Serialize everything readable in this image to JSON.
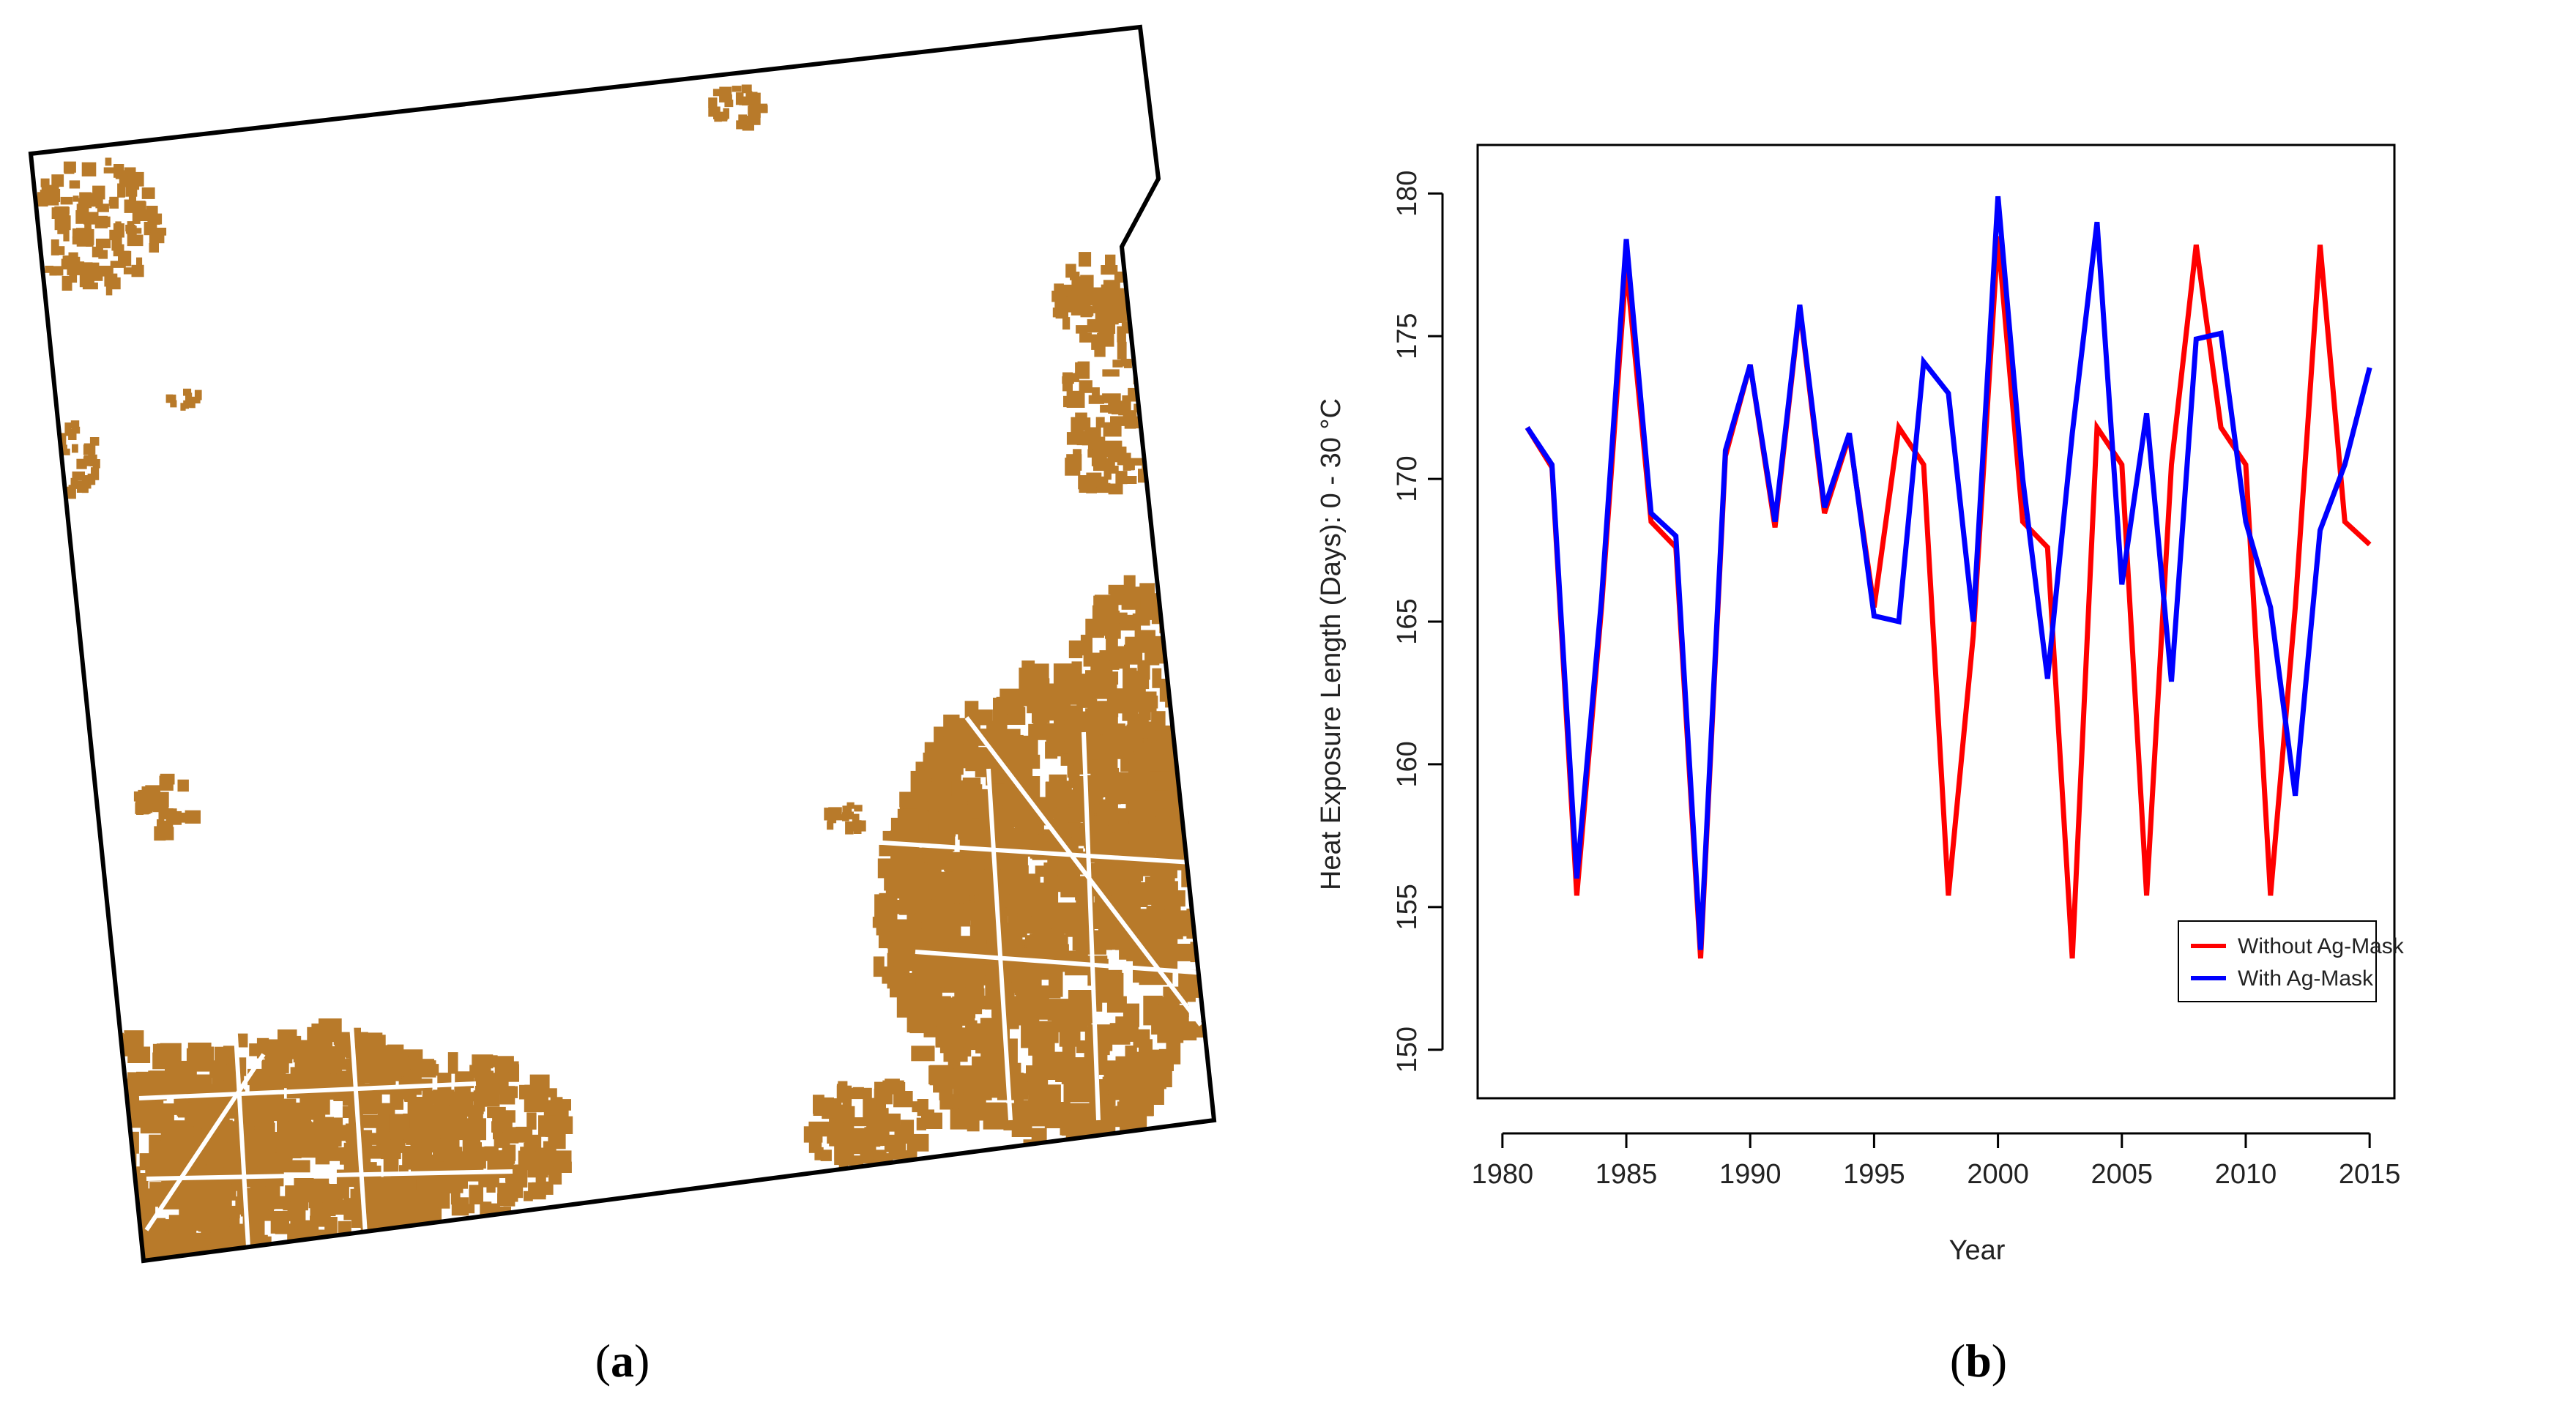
{
  "panel_a": {
    "caption_letter": "a",
    "fill_color": "#b87a2a",
    "outline_color": "#000000"
  },
  "panel_b": {
    "caption_letter": "b"
  },
  "chart_data": {
    "type": "line",
    "title": "",
    "xlabel": "Year",
    "ylabel": "Heat Exposure Length (Days): 0 - 30 °C",
    "xlim": [
      1980,
      2015
    ],
    "ylim": [
      150,
      180
    ],
    "x_ticks": [
      1980,
      1985,
      1990,
      1995,
      2000,
      2005,
      2010,
      2015
    ],
    "y_ticks": [
      150,
      155,
      160,
      165,
      170,
      175,
      180
    ],
    "x": [
      1981,
      1982,
      1983,
      1984,
      1985,
      1986,
      1987,
      1988,
      1989,
      1990,
      1991,
      1992,
      1993,
      1994,
      1995,
      1996,
      1997,
      1998,
      1999,
      2000,
      2001,
      2002,
      2003,
      2004,
      2005,
      2006,
      2007,
      2008,
      2009,
      2010,
      2011,
      2012,
      2013,
      2014,
      2015
    ],
    "series": [
      {
        "name": "Without Ag-Mask",
        "color": "#ff0000",
        "values": [
          171.8,
          170.4,
          155.4,
          165.5,
          177.5,
          168.5,
          167.6,
          153.2,
          170.8,
          174.0,
          168.3,
          176.0,
          168.8,
          171.5,
          165.5,
          171.8,
          170.5,
          155.4,
          164.5,
          178.5,
          168.5,
          167.6,
          153.2,
          171.8,
          170.5,
          155.4,
          170.5,
          178.2,
          171.8,
          170.5,
          155.4,
          165.5,
          178.2,
          168.5,
          167.7
        ]
      },
      {
        "name": "With Ag-Mask",
        "color": "#0000ff",
        "values": [
          171.8,
          170.5,
          156.0,
          165.8,
          178.4,
          168.8,
          168.0,
          153.5,
          171.0,
          174.0,
          168.5,
          176.1,
          169.0,
          171.6,
          165.2,
          165.0,
          174.1,
          173.0,
          165.0,
          179.9,
          170.0,
          163.0,
          171.6,
          179.0,
          166.3,
          172.3,
          162.9,
          174.9,
          175.1,
          168.5,
          165.5,
          158.9,
          168.2,
          170.5,
          173.9
        ]
      }
    ],
    "legend_position": "bottom-right",
    "grid": false
  }
}
